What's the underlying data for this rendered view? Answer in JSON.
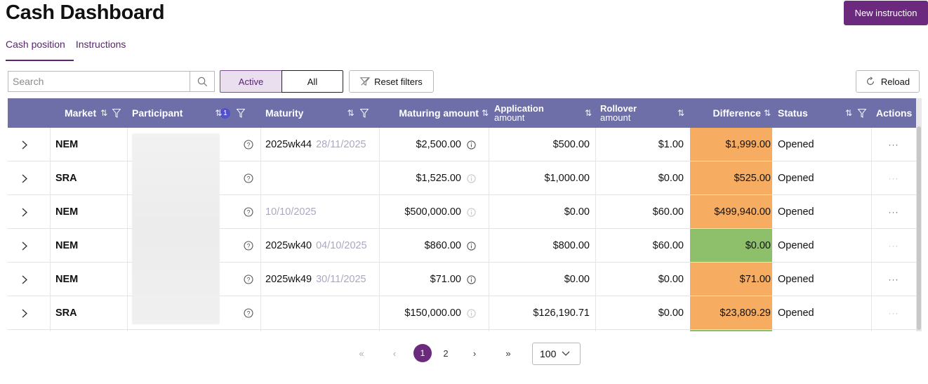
{
  "page": {
    "title": "Cash Dashboard",
    "new_button": "New instruction"
  },
  "tabs": [
    {
      "label": "Cash position",
      "active": true
    },
    {
      "label": "Instructions",
      "active": false
    }
  ],
  "toolbar": {
    "search_placeholder": "Search",
    "segment_active": "Active",
    "segment_all": "All",
    "reset_filters": "Reset filters",
    "reload": "Reload"
  },
  "table": {
    "columns": {
      "market": "Market",
      "participant": "Participant",
      "participant_filter_count": "1",
      "maturity": "Maturity",
      "maturing_amount": "Maturing amount",
      "application_amount_1": "Application",
      "application_amount_2": "amount",
      "rollover_amount_1": "Rollover",
      "rollover_amount_2": "amount",
      "difference": "Difference",
      "status": "Status",
      "actions": "Actions"
    },
    "rows": [
      {
        "market": "NEM",
        "maturity": "2025wk44",
        "maturity_date": "28/11/2025",
        "maturing": "$2,500.00",
        "application": "$500.00",
        "rollover": "$1.00",
        "difference": "$1,999.00",
        "diff_color": "orange",
        "status": "Opened",
        "actions": "···"
      },
      {
        "market": "SRA",
        "maturity": "",
        "maturity_date": "",
        "maturing": "$1,525.00",
        "application": "$1,000.00",
        "rollover": "$0.00",
        "difference": "$525.00",
        "diff_color": "orange",
        "status": "Opened",
        "actions": "···"
      },
      {
        "market": "NEM",
        "maturity": "",
        "maturity_date": "10/10/2025",
        "maturing": "$500,000.00",
        "application": "$0.00",
        "rollover": "$60.00",
        "difference": "$499,940.00",
        "diff_color": "orange",
        "status": "Opened",
        "actions": "···"
      },
      {
        "market": "NEM",
        "maturity": "2025wk40",
        "maturity_date": "04/10/2025",
        "maturing": "$860.00",
        "application": "$800.00",
        "rollover": "$60.00",
        "difference": "$0.00",
        "diff_color": "green",
        "status": "Opened",
        "actions": "···"
      },
      {
        "market": "NEM",
        "maturity": "2025wk49",
        "maturity_date": "30/11/2025",
        "maturing": "$71.00",
        "application": "$0.00",
        "rollover": "$0.00",
        "difference": "$71.00",
        "diff_color": "orange",
        "status": "Opened",
        "actions": "···"
      },
      {
        "market": "SRA",
        "maturity": "",
        "maturity_date": "",
        "maturing": "$150,000.00",
        "application": "$126,190.71",
        "rollover": "$0.00",
        "difference": "$23,809.29",
        "diff_color": "orange",
        "status": "Opened",
        "actions": "···"
      }
    ]
  },
  "pagination": {
    "first": "«",
    "prev": "‹",
    "pages": [
      "1",
      "2"
    ],
    "current": "1",
    "next": "›",
    "last": "»",
    "page_size": "100"
  },
  "colors": {
    "brand": "#6b2a7e",
    "header": "#6e6fa8",
    "diff_orange": "#f6ad61",
    "diff_green": "#8ec06b"
  }
}
